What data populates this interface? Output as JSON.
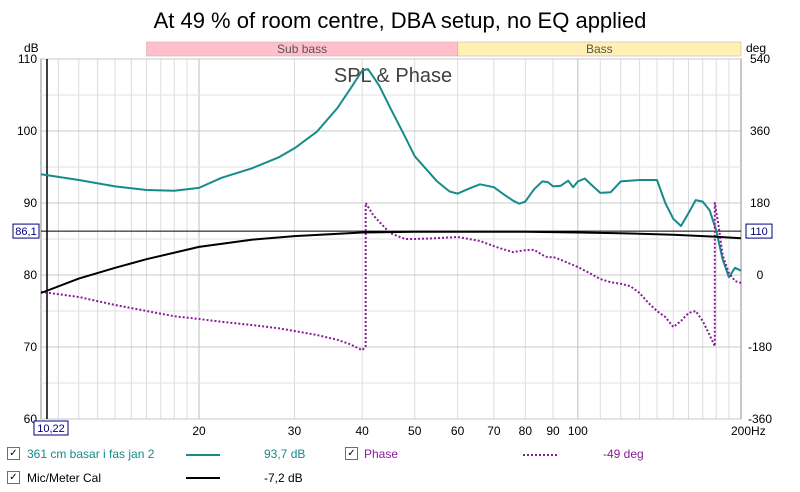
{
  "title": "At 49 % of room centre, DBA setup, no EQ applied",
  "chart_data": {
    "type": "line",
    "overlay_title": "SPL & Phase",
    "x_scale": "log",
    "xlim": [
      10.22,
      200
    ],
    "x_ticks": [
      20,
      30,
      40,
      50,
      60,
      70,
      80,
      90,
      100
    ],
    "x_end_label": "200Hz",
    "x_cursor_label": "10,22",
    "ylabel_left": "dB",
    "ylim_left": [
      60,
      110
    ],
    "y_ticks_left": [
      60,
      70,
      80,
      90,
      100,
      110
    ],
    "y_cursor_label_left": "86,1",
    "y_cursor_value": 86.1,
    "ylabel_right": "deg",
    "ylim_right": [
      -360,
      540
    ],
    "y_ticks_right": [
      -360,
      -180,
      0,
      180,
      360,
      540
    ],
    "y_cursor_label_right": "110",
    "bands": [
      {
        "label": "Sub bass",
        "from": 16,
        "to": 60,
        "color": "#ffc0cb"
      },
      {
        "label": "Bass",
        "from": 60,
        "to": 250,
        "color": "#fff0b4"
      }
    ],
    "series": [
      {
        "name": "361 cm basar i fas jan 2",
        "axis": "left",
        "color": "#178a8a",
        "style": "solid",
        "x": [
          10.22,
          12,
          14,
          16,
          18,
          20,
          22,
          25,
          28,
          30,
          33,
          36,
          38,
          40,
          41,
          43,
          45,
          48,
          50,
          55,
          58,
          60,
          63,
          66,
          70,
          73,
          76,
          78,
          80,
          83,
          86,
          88,
          90,
          93,
          96,
          98,
          100,
          103,
          106,
          110,
          115,
          120,
          130,
          140,
          145,
          150,
          155,
          160,
          165,
          170,
          175,
          180,
          185,
          190,
          195,
          200
        ],
        "y": [
          94,
          93.2,
          92.3,
          91.8,
          91.7,
          92.1,
          93.5,
          94.8,
          96.3,
          97.6,
          99.9,
          103.2,
          105.8,
          108.4,
          108.6,
          106.3,
          103.3,
          99.2,
          96.5,
          93.0,
          91.6,
          91.3,
          92.0,
          92.6,
          92.2,
          91.2,
          90.3,
          89.9,
          90.2,
          91.9,
          93.0,
          92.9,
          92.3,
          92.4,
          93.1,
          92.2,
          93.0,
          93.4,
          92.5,
          91.4,
          91.5,
          93.0,
          93.2,
          93.2,
          90.0,
          87.8,
          86.8,
          88.6,
          90.4,
          90.2,
          89.0,
          86.2,
          82.2,
          79.7,
          81.0,
          80.6
        ]
      },
      {
        "name": "Phase",
        "axis": "right",
        "color": "#8b1a9a",
        "style": "dotted",
        "x": [
          10.22,
          12,
          14,
          16,
          18,
          20,
          22,
          25,
          28,
          30,
          33,
          36,
          38,
          40,
          40.6,
          40.61,
          42,
          45,
          48,
          50,
          55,
          60,
          63,
          66,
          70,
          73,
          76,
          78,
          80,
          83,
          86,
          88,
          90,
          93,
          96,
          100,
          105,
          110,
          115,
          120,
          125,
          130,
          135,
          140,
          145,
          150,
          155,
          160,
          165,
          170,
          175,
          178.9,
          178.91,
          182,
          185,
          190,
          195,
          200
        ],
        "y": [
          -42,
          -55,
          -75,
          -90,
          -103,
          -110,
          -117,
          -125,
          -133,
          -140,
          -150,
          -162,
          -173,
          -188,
          -178,
          180,
          148,
          105,
          90,
          90,
          92,
          95,
          90,
          85,
          72,
          64,
          57,
          60,
          62,
          63,
          50,
          44,
          45,
          38,
          30,
          20,
          5,
          -10,
          -18,
          -22,
          -28,
          -45,
          -70,
          -90,
          -105,
          -130,
          -115,
          -95,
          -90,
          -115,
          -150,
          -178,
          180,
          120,
          50,
          5,
          -15,
          -20
        ]
      },
      {
        "name": "Mic/Meter Cal",
        "axis": "left",
        "color": "#000000",
        "style": "solid",
        "x": [
          10.22,
          12,
          14,
          16,
          20,
          25,
          30,
          40,
          50,
          60,
          80,
          100,
          120,
          150,
          180,
          200
        ],
        "y": [
          77.5,
          79.5,
          81.0,
          82.2,
          83.9,
          84.9,
          85.4,
          85.9,
          86.0,
          86.0,
          86.0,
          85.9,
          85.8,
          85.6,
          85.3,
          85.1
        ]
      }
    ]
  },
  "legend": [
    {
      "label": "361 cm basar i fas jan 2",
      "value": "93,7 dB",
      "color": "#178a8a",
      "style": "solid",
      "checked": "✓"
    },
    {
      "label": "Phase",
      "value": "-49 deg",
      "color": "#8b1a9a",
      "style": "dotted",
      "checked": "✓"
    },
    {
      "label": "Mic/Meter Cal",
      "value": "-7,2 dB",
      "color": "#000000",
      "style": "solid",
      "checked": "✓"
    }
  ]
}
